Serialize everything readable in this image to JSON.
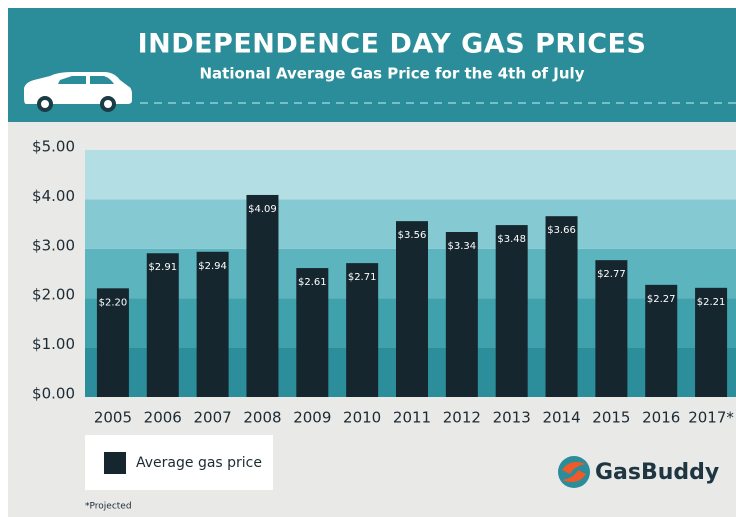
{
  "chart_data": {
    "type": "bar",
    "title": "INDEPENDENCE DAY GAS PRICES",
    "subtitle": "National Average Gas Price for the 4th of July",
    "categories": [
      "2005",
      "2006",
      "2007",
      "2008",
      "2009",
      "2010",
      "2011",
      "2012",
      "2013",
      "2014",
      "2015",
      "2016",
      "2017*"
    ],
    "series": [
      {
        "name": "Average gas price",
        "color": "#15262f",
        "values": [
          2.2,
          2.91,
          2.94,
          4.09,
          2.61,
          2.71,
          3.56,
          3.34,
          3.48,
          3.66,
          2.77,
          2.27,
          2.21
        ],
        "value_labels": [
          "$2.20",
          "$2.91",
          "$2.94",
          "$4.09",
          "$2.61",
          "$2.71",
          "$3.56",
          "$3.34",
          "$3.48",
          "$3.66",
          "$2.77",
          "$2.27",
          "$2.21"
        ]
      }
    ],
    "ylim": [
      0,
      5
    ],
    "yticks": [
      {
        "value": 0,
        "label": "$0.00"
      },
      {
        "value": 1,
        "label": "$1.00"
      },
      {
        "value": 2,
        "label": "$2.00"
      },
      {
        "value": 3,
        "label": "$3.00"
      },
      {
        "value": 4,
        "label": "$4.00"
      },
      {
        "value": 5,
        "label": "$5.00"
      }
    ],
    "footnote": "*Projected",
    "brand": "GasBuddy"
  }
}
